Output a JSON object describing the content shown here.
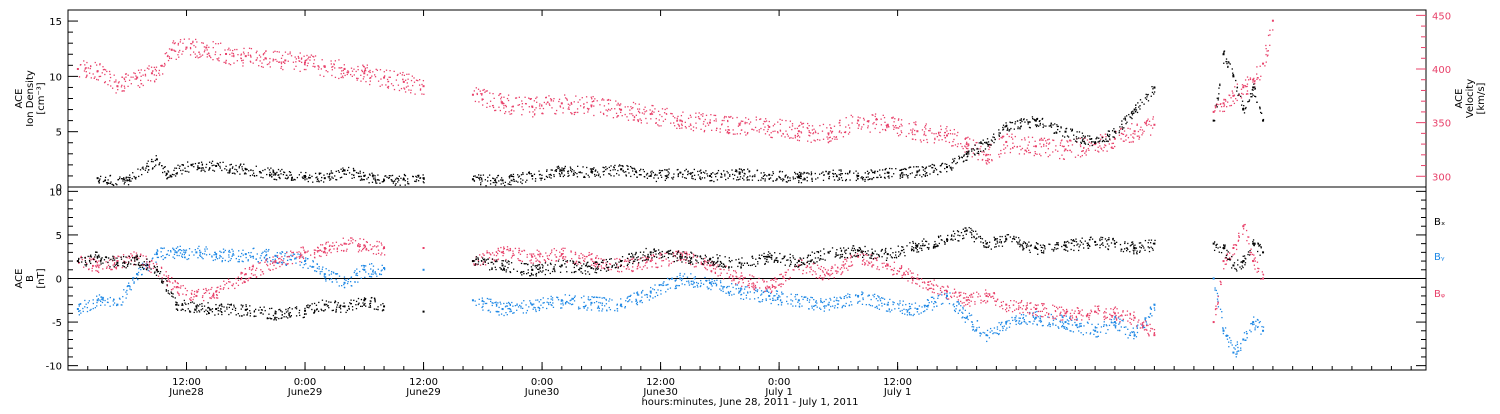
{
  "chart_data": [
    {
      "type": "scatter",
      "panel": "top",
      "ylabel_left": [
        "ACE",
        "Ion Density",
        "[cm⁻³]"
      ],
      "ylabel_right": [
        "ACE",
        "Velocity",
        "[km/s]"
      ],
      "y_left": {
        "min": 0,
        "max": 16,
        "ticks": [
          0,
          5,
          10,
          15
        ]
      },
      "y_right": {
        "min": 290,
        "max": 455,
        "ticks": [
          300,
          350,
          400,
          450
        ]
      },
      "series": [
        {
          "color": "#000000",
          "axis": "left",
          "points": [
            [
              3,
              0.8
            ],
            [
              6,
              0.6
            ],
            [
              9,
              2.5
            ],
            [
              10,
              1.2
            ],
            [
              12.5,
              2.0
            ],
            [
              15,
              1.9
            ],
            [
              18,
              1.6
            ],
            [
              21,
              1.2
            ],
            [
              24,
              1.0
            ],
            [
              26,
              0.8
            ],
            [
              28,
              1.5
            ],
            [
              30,
              1.0
            ],
            [
              32,
              0.6
            ],
            [
              34,
              0.7
            ],
            [
              36,
              0.8
            ],
            [
              41,
              0.7
            ],
            [
              44,
              0.6
            ],
            [
              47,
              1.0
            ],
            [
              50,
              1.5
            ],
            [
              53,
              1.4
            ],
            [
              56,
              1.6
            ],
            [
              59,
              1.0
            ],
            [
              62,
              1.3
            ],
            [
              65,
              1.0
            ],
            [
              68,
              1.2
            ],
            [
              71,
              1.1
            ],
            [
              74,
              0.9
            ],
            [
              77,
              1.2
            ],
            [
              80,
              1.0
            ],
            [
              83,
              1.3
            ],
            [
              86,
              1.4
            ],
            [
              89,
              1.8
            ],
            [
              91,
              3.0
            ],
            [
              93,
              4.0
            ],
            [
              95,
              5.5
            ],
            [
              98,
              6.0
            ],
            [
              101,
              5.0
            ],
            [
              104,
              4.0
            ],
            [
              106,
              5.0
            ],
            [
              108,
              7.0
            ],
            [
              110,
              9.0
            ],
            [
              116,
              6.0
            ],
            [
              117,
              12.0
            ],
            [
              118,
              10.0
            ],
            [
              119,
              7.0
            ],
            [
              120,
              9.0
            ],
            [
              121,
              6.0
            ]
          ]
        },
        {
          "color": "#e8416a",
          "axis": "right",
          "points": [
            [
              1,
              400
            ],
            [
              3,
              398
            ],
            [
              5,
              384
            ],
            [
              7,
              392
            ],
            [
              8.5,
              396
            ],
            [
              9.5,
              403
            ],
            [
              10.5,
              418
            ],
            [
              12,
              420
            ],
            [
              14,
              420
            ],
            [
              16,
              414
            ],
            [
              18,
              412
            ],
            [
              20,
              410
            ],
            [
              22,
              408
            ],
            [
              24,
              406
            ],
            [
              26,
              402
            ],
            [
              28,
              400
            ],
            [
              30,
              396
            ],
            [
              32,
              392
            ],
            [
              34,
              388
            ],
            [
              36,
              384
            ],
            [
              41,
              376
            ],
            [
              44,
              368
            ],
            [
              47,
              365
            ],
            [
              50,
              368
            ],
            [
              53,
              366
            ],
            [
              56,
              362
            ],
            [
              59,
              358
            ],
            [
              62,
              352
            ],
            [
              65,
              350
            ],
            [
              68,
              348
            ],
            [
              71,
              346
            ],
            [
              74,
              342
            ],
            [
              77,
              340
            ],
            [
              80,
              352
            ],
            [
              83,
              348
            ],
            [
              86,
              342
            ],
            [
              89,
              338
            ],
            [
              91,
              330
            ],
            [
              93,
              320
            ],
            [
              95,
              332
            ],
            [
              98,
              328
            ],
            [
              101,
              325
            ],
            [
              104,
              330
            ],
            [
              106,
              335
            ],
            [
              108,
              342
            ],
            [
              110,
              348
            ],
            [
              116,
              360
            ],
            [
              117,
              368
            ],
            [
              118,
              375
            ],
            [
              119,
              383
            ],
            [
              120,
              390
            ],
            [
              121,
              405
            ],
            [
              122,
              445
            ]
          ]
        }
      ]
    },
    {
      "type": "scatter",
      "panel": "bottom",
      "ylabel": [
        "ACE",
        "B",
        "[nT]"
      ],
      "y": {
        "min": -10.5,
        "max": 10.5,
        "ticks": [
          -10,
          -5,
          0,
          5,
          10
        ]
      },
      "legend": [
        "Bₓ",
        "Bᵧ",
        "Bᵩ"
      ],
      "series": [
        {
          "name": "Bₓ",
          "color": "#000000",
          "points": [
            [
              1,
              2.0
            ],
            [
              3,
              2.5
            ],
            [
              5,
              1.8
            ],
            [
              7,
              2.2
            ],
            [
              9,
              1.0
            ],
            [
              11,
              -3.0
            ],
            [
              13,
              -3.2
            ],
            [
              15,
              -3.5
            ],
            [
              18,
              -3.6
            ],
            [
              21,
              -4.0
            ],
            [
              24,
              -3.7
            ],
            [
              26,
              -3.0
            ],
            [
              28,
              -3.2
            ],
            [
              30,
              -2.5
            ],
            [
              32,
              -3.2
            ],
            [
              36,
              -3.8
            ],
            [
              41,
              2.0
            ],
            [
              44,
              1.5
            ],
            [
              47,
              1.0
            ],
            [
              50,
              1.5
            ],
            [
              53,
              1.2
            ],
            [
              56,
              2.0
            ],
            [
              59,
              3.0
            ],
            [
              62,
              2.5
            ],
            [
              65,
              2.2
            ],
            [
              68,
              1.8
            ],
            [
              71,
              2.5
            ],
            [
              74,
              2.0
            ],
            [
              77,
              3.0
            ],
            [
              80,
              3.2
            ],
            [
              83,
              2.8
            ],
            [
              86,
              3.8
            ],
            [
              89,
              4.5
            ],
            [
              91,
              5.5
            ],
            [
              93,
              4.0
            ],
            [
              95,
              4.5
            ],
            [
              98,
              3.5
            ],
            [
              101,
              3.8
            ],
            [
              104,
              4.2
            ],
            [
              106,
              4.0
            ],
            [
              108,
              3.5
            ],
            [
              110,
              4.0
            ],
            [
              116,
              4.0
            ],
            [
              117,
              3.5
            ],
            [
              118,
              1.5
            ],
            [
              119,
              2.0
            ],
            [
              120,
              4.0
            ],
            [
              121,
              3.0
            ]
          ]
        },
        {
          "name": "Bᵧ",
          "color": "#1e88e5",
          "points": [
            [
              1,
              -3.5
            ],
            [
              3,
              -2.5
            ],
            [
              5,
              -3.0
            ],
            [
              7,
              0.5
            ],
            [
              9,
              2.8
            ],
            [
              11,
              3.0
            ],
            [
              13,
              3.0
            ],
            [
              15,
              2.8
            ],
            [
              18,
              2.8
            ],
            [
              21,
              2.6
            ],
            [
              24,
              2.0
            ],
            [
              26,
              0.5
            ],
            [
              28,
              -0.5
            ],
            [
              30,
              1.0
            ],
            [
              32,
              1.2
            ],
            [
              36,
              1.0
            ],
            [
              41,
              -2.5
            ],
            [
              44,
              -3.5
            ],
            [
              47,
              -3.0
            ],
            [
              50,
              -2.5
            ],
            [
              53,
              -2.8
            ],
            [
              56,
              -3.0
            ],
            [
              59,
              -1.5
            ],
            [
              62,
              0.0
            ],
            [
              65,
              -0.5
            ],
            [
              68,
              -1.5
            ],
            [
              71,
              -2.0
            ],
            [
              74,
              -2.5
            ],
            [
              77,
              -3.0
            ],
            [
              80,
              -2.0
            ],
            [
              83,
              -3.0
            ],
            [
              86,
              -3.5
            ],
            [
              89,
              -2.0
            ],
            [
              91,
              -4.5
            ],
            [
              93,
              -6.5
            ],
            [
              95,
              -5.0
            ],
            [
              98,
              -4.5
            ],
            [
              101,
              -5.0
            ],
            [
              104,
              -6.0
            ],
            [
              106,
              -5.0
            ],
            [
              108,
              -6.5
            ],
            [
              110,
              -3.0
            ],
            [
              116,
              0.0
            ],
            [
              117,
              -6.0
            ],
            [
              118,
              -8.5
            ],
            [
              119,
              -7.0
            ],
            [
              120,
              -5.0
            ],
            [
              121,
              -6.0
            ]
          ]
        },
        {
          "name": "Bᵩ",
          "color": "#e8416a",
          "points": [
            [
              1,
              2.0
            ],
            [
              3,
              1.5
            ],
            [
              5,
              2.0
            ],
            [
              7,
              2.5
            ],
            [
              9,
              1.0
            ],
            [
              11,
              -1.0
            ],
            [
              13,
              -2.0
            ],
            [
              15,
              -1.5
            ],
            [
              18,
              0.5
            ],
            [
              21,
              2.0
            ],
            [
              24,
              3.0
            ],
            [
              26,
              3.5
            ],
            [
              28,
              4.0
            ],
            [
              30,
              3.8
            ],
            [
              32,
              3.5
            ],
            [
              36,
              3.5
            ],
            [
              41,
              2.0
            ],
            [
              44,
              3.0
            ],
            [
              47,
              2.5
            ],
            [
              50,
              2.8
            ],
            [
              53,
              2.2
            ],
            [
              56,
              1.5
            ],
            [
              59,
              2.0
            ],
            [
              62,
              2.5
            ],
            [
              65,
              1.5
            ],
            [
              68,
              0.0
            ],
            [
              71,
              -1.0
            ],
            [
              74,
              1.5
            ],
            [
              77,
              0.5
            ],
            [
              80,
              2.5
            ],
            [
              83,
              1.5
            ],
            [
              86,
              0.0
            ],
            [
              89,
              -1.5
            ],
            [
              91,
              -2.5
            ],
            [
              93,
              -2.0
            ],
            [
              95,
              -3.0
            ],
            [
              98,
              -3.5
            ],
            [
              101,
              -4.0
            ],
            [
              104,
              -3.8
            ],
            [
              106,
              -4.0
            ],
            [
              108,
              -4.5
            ],
            [
              110,
              -6.5
            ],
            [
              116,
              -5.0
            ],
            [
              117,
              2.0
            ],
            [
              118,
              3.5
            ],
            [
              119,
              6.0
            ],
            [
              120,
              2.0
            ],
            [
              121,
              0.0
            ]
          ]
        }
      ]
    }
  ],
  "x_axis": {
    "xlabel": "hours:minutes, June 28, 2011 - July  1, 2011",
    "range_hours": [
      0,
      137.5
    ],
    "ticks": [
      {
        "h": 12,
        "time": "12:00",
        "date": "June28"
      },
      {
        "h": 24,
        "time": "0:00",
        "date": "June29"
      },
      {
        "h": 36,
        "time": "12:00",
        "date": "June29"
      },
      {
        "h": 48,
        "time": "0:00",
        "date": "June30"
      },
      {
        "h": 60,
        "time": "12:00",
        "date": "June30"
      },
      {
        "h": 72,
        "time": "0:00",
        "date": "July 1"
      },
      {
        "h": 84,
        "time": "12:00",
        "date": "July 1"
      }
    ]
  }
}
